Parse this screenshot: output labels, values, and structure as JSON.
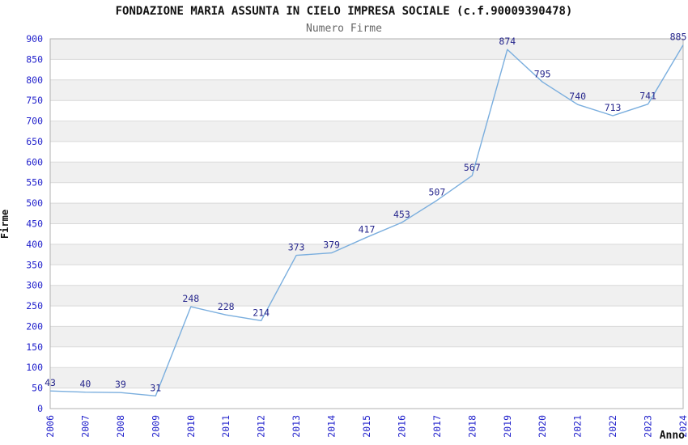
{
  "chart_data": {
    "type": "line",
    "title": "FONDAZIONE MARIA ASSUNTA IN CIELO IMPRESA SOCIALE (c.f.90009390478)",
    "subtitle": "Numero Firme",
    "x": [
      "2006",
      "2007",
      "2008",
      "2009",
      "2010",
      "2011",
      "2012",
      "2013",
      "2014",
      "2015",
      "2016",
      "2017",
      "2018",
      "2019",
      "2020",
      "2021",
      "2022",
      "2023",
      "2024"
    ],
    "values": [
      43,
      40,
      39,
      31,
      248,
      228,
      214,
      373,
      379,
      417,
      453,
      507,
      567,
      874,
      795,
      740,
      713,
      741,
      885
    ],
    "xlabel": "Anno",
    "ylabel": "Firme",
    "ylim": [
      0,
      900
    ],
    "ytick_step": 50,
    "grid": true,
    "legend_position": "none",
    "data_labels_visible": true,
    "colors": {
      "line": "#7aaede",
      "tick_label": "#2222cc",
      "value_label": "#26268c",
      "band": "#f0f0f0",
      "grid": "#d9d9d9",
      "border": "#b0b0b0",
      "title": "#111111",
      "subtitle": "#666666",
      "axis_title": "#111111",
      "background": "#ffffff"
    }
  }
}
